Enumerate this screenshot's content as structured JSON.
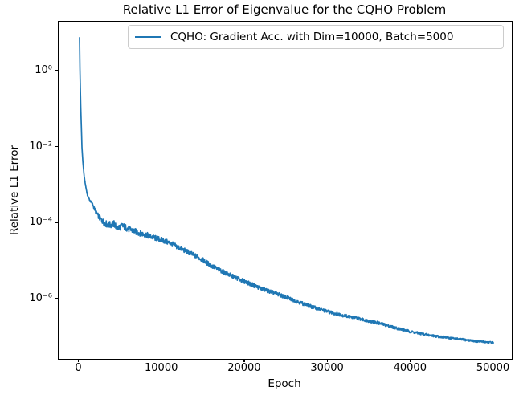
{
  "chart_data": {
    "type": "line",
    "title": "Relative L1 Error of Eigenvalue for the CQHO Problem",
    "xlabel": "Epoch",
    "ylabel": "Relative L1 Error",
    "yscale": "log",
    "grid": false,
    "legend_position": "upper center",
    "x_ticks": [
      0,
      10000,
      20000,
      30000,
      40000,
      50000
    ],
    "y_tick_exponents": [
      0,
      -2,
      -4,
      -6
    ],
    "xlim": [
      -2470,
      52180
    ],
    "ylim_log10": [
      -7.57,
      1.31
    ],
    "series": [
      {
        "name": "CQHO: Gradient Acc. with Dim=10000, Batch=5000",
        "color": "#1f77b4",
        "points": [
          [
            50,
            8.0
          ],
          [
            100,
            1.1
          ],
          [
            150,
            0.33
          ],
          [
            200,
            0.11
          ],
          [
            250,
            0.048
          ],
          [
            300,
            0.021
          ],
          [
            340,
            0.01
          ],
          [
            450,
            0.0042
          ],
          [
            600,
            0.0018
          ],
          [
            770,
            0.001
          ],
          [
            1000,
            0.00055
          ],
          [
            1300,
            0.0004
          ],
          [
            1650,
            0.00031
          ],
          [
            2000,
            0.0002
          ],
          [
            2500,
            0.000135
          ],
          [
            3100,
            0.0001
          ],
          [
            3600,
            9e-05
          ],
          [
            4200,
            9.6e-05
          ],
          [
            4700,
            7.6e-05
          ],
          [
            5200,
            8.6e-05
          ],
          [
            6000,
            7e-05
          ],
          [
            7000,
            5.8e-05
          ],
          [
            8000,
            5e-05
          ],
          [
            9000,
            4.2e-05
          ],
          [
            10000,
            3.6e-05
          ],
          [
            11000,
            3e-05
          ],
          [
            12000,
            2.3e-05
          ],
          [
            13000,
            1.8e-05
          ],
          [
            14000,
            1.4e-05
          ],
          [
            15000,
            1.05e-05
          ],
          [
            16000,
            7.5e-06
          ],
          [
            17000,
            5.8e-06
          ],
          [
            18000,
            4.5e-06
          ],
          [
            19000,
            3.6e-06
          ],
          [
            20000,
            2.9e-06
          ],
          [
            22000,
            1.9e-06
          ],
          [
            24000,
            1.35e-06
          ],
          [
            26000,
            9.2e-07
          ],
          [
            28000,
            6.4e-07
          ],
          [
            30000,
            4.7e-07
          ],
          [
            32000,
            3.7e-07
          ],
          [
            34000,
            3e-07
          ],
          [
            36000,
            2.4e-07
          ],
          [
            38000,
            1.8e-07
          ],
          [
            40000,
            1.4e-07
          ],
          [
            42000,
            1.15e-07
          ],
          [
            44000,
            1e-07
          ],
          [
            46000,
            8.8e-08
          ],
          [
            48000,
            7.8e-08
          ],
          [
            50000,
            7.2e-08
          ]
        ],
        "noise_decades": [
          [
            0,
            0.0
          ],
          [
            300,
            0.0
          ],
          [
            800,
            0.01
          ],
          [
            1500,
            0.03
          ],
          [
            2500,
            0.07
          ],
          [
            3500,
            0.09
          ],
          [
            5000,
            0.09
          ],
          [
            7000,
            0.08
          ],
          [
            10000,
            0.07
          ],
          [
            15000,
            0.06
          ],
          [
            20000,
            0.055
          ],
          [
            25000,
            0.05
          ],
          [
            30000,
            0.045
          ],
          [
            35000,
            0.04
          ],
          [
            40000,
            0.035
          ],
          [
            45000,
            0.03
          ],
          [
            50000,
            0.025
          ]
        ]
      }
    ]
  }
}
